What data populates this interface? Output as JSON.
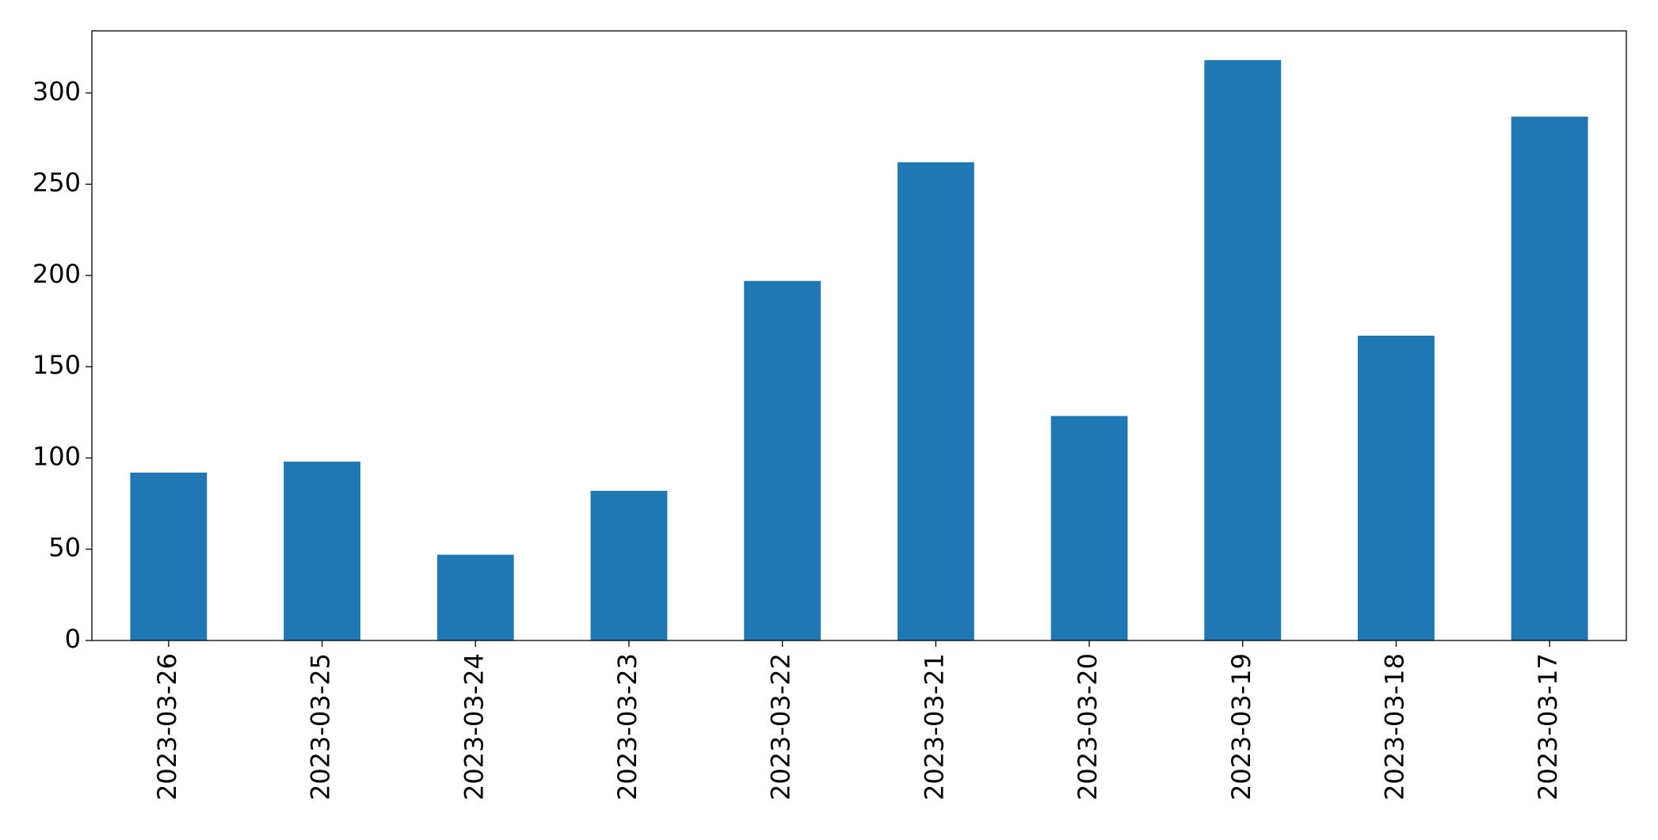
{
  "chart_data": {
    "type": "bar",
    "categories": [
      "2023-03-26",
      "2023-03-25",
      "2023-03-24",
      "2023-03-23",
      "2023-03-22",
      "2023-03-21",
      "2023-03-20",
      "2023-03-19",
      "2023-03-18",
      "2023-03-17"
    ],
    "values": [
      92,
      98,
      47,
      82,
      197,
      262,
      123,
      318,
      167,
      287
    ],
    "color": "#1f77b4",
    "ylim": [
      0,
      334
    ],
    "yticks": [
      0,
      50,
      100,
      150,
      200,
      250,
      300
    ],
    "grid": false
  }
}
